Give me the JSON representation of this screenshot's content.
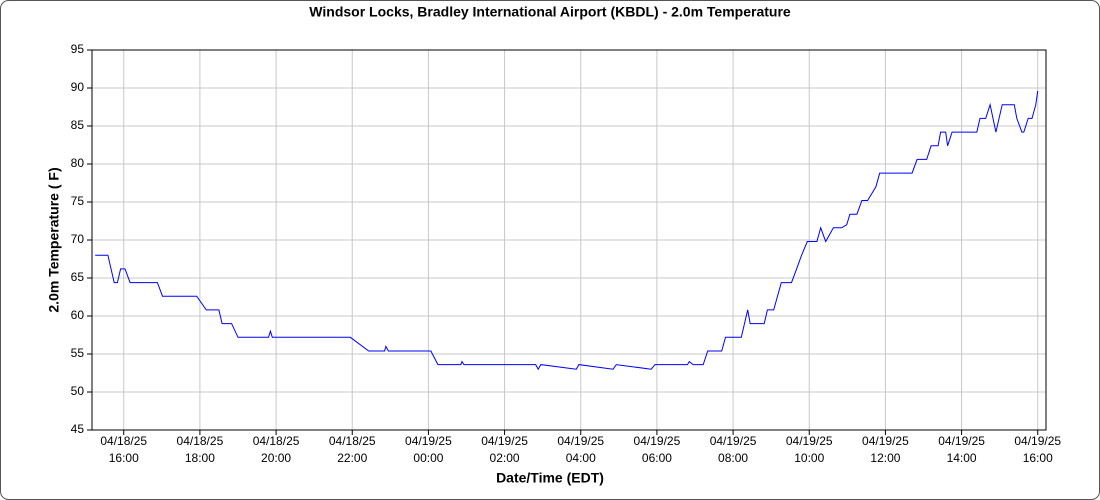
{
  "chart_data": {
    "type": "line",
    "title": "Windsor Locks, Bradley International Airport (KBDL) - 2.0m Temperature",
    "x_label": "Date/Time (EDT)",
    "y_label": "2.0m Temperature ( F)",
    "grid": true,
    "xlim": [
      "04/18/25 15:10",
      "04/19/25 16:13"
    ],
    "xticks": [
      {
        "value": "04/18/25 16:00",
        "label": [
          "04/18/25",
          "16:00"
        ]
      },
      {
        "value": "04/18/25 18:00",
        "label": [
          "04/18/25",
          "18:00"
        ]
      },
      {
        "value": "04/18/25 20:00",
        "label": [
          "04/18/25",
          "20:00"
        ]
      },
      {
        "value": "04/18/25 22:00",
        "label": [
          "04/18/25",
          "22:00"
        ]
      },
      {
        "value": "04/19/25 00:00",
        "label": [
          "04/19/25",
          "00:00"
        ]
      },
      {
        "value": "04/19/25 02:00",
        "label": [
          "04/19/25",
          "02:00"
        ]
      },
      {
        "value": "04/19/25 04:00",
        "label": [
          "04/19/25",
          "04:00"
        ]
      },
      {
        "value": "04/19/25 06:00",
        "label": [
          "04/19/25",
          "06:00"
        ]
      },
      {
        "value": "04/19/25 08:00",
        "label": [
          "04/19/25",
          "08:00"
        ]
      },
      {
        "value": "04/19/25 10:00",
        "label": [
          "04/19/25",
          "10:00"
        ]
      },
      {
        "value": "04/19/25 12:00",
        "label": [
          "04/19/25",
          "12:00"
        ]
      },
      {
        "value": "04/19/25 14:00",
        "label": [
          "04/19/25",
          "14:00"
        ]
      },
      {
        "value": "04/19/25 16:00",
        "label": [
          "04/19/25",
          "16:00"
        ]
      }
    ],
    "ylim": [
      45,
      95
    ],
    "yticks": [
      45,
      50,
      55,
      60,
      65,
      70,
      75,
      80,
      85,
      90,
      95
    ],
    "x": [
      "04/18/25 15:15",
      "04/18/25 15:35",
      "04/18/25 15:45",
      "04/18/25 15:50",
      "04/18/25 15:55",
      "04/18/25 16:02",
      "04/18/25 16:10",
      "04/18/25 16:53",
      "04/18/25 17:01",
      "04/18/25 17:48",
      "04/18/25 17:55",
      "04/18/25 18:10",
      "04/18/25 18:30",
      "04/18/25 18:35",
      "04/18/25 18:50",
      "04/18/25 19:00",
      "04/18/25 19:48",
      "04/18/25 19:51",
      "04/18/25 19:54",
      "04/18/25 21:49",
      "04/18/25 21:57",
      "04/18/25 22:26",
      "04/18/25 22:51",
      "04/18/25 22:53",
      "04/18/25 22:57",
      "04/18/25 23:56",
      "04/19/25 00:04",
      "04/19/25 00:15",
      "04/19/25 00:51",
      "04/19/25 00:53",
      "04/19/25 00:56",
      "04/19/25 02:49",
      "04/19/25 02:53",
      "04/19/25 02:57",
      "04/19/25 03:53",
      "04/19/25 03:57",
      "04/19/25 04:51",
      "04/19/25 04:56",
      "04/19/25 05:51",
      "04/19/25 05:57",
      "04/19/25 06:48",
      "04/19/25 06:51",
      "04/19/25 06:57",
      "04/19/25 07:13",
      "04/19/25 07:20",
      "04/19/25 07:42",
      "04/19/25 07:48",
      "04/19/25 08:13",
      "04/19/25 08:23",
      "04/19/25 08:27",
      "04/19/25 08:49",
      "04/19/25 08:54",
      "04/19/25 09:04",
      "04/19/25 09:10",
      "04/19/25 09:16",
      "04/19/25 09:32",
      "04/19/25 09:40",
      "04/19/25 09:48",
      "04/19/25 09:57",
      "04/19/25 10:12",
      "04/19/25 10:18",
      "04/19/25 10:26",
      "04/19/25 10:38",
      "04/19/25 10:51",
      "04/19/25 10:59",
      "04/19/25 11:04",
      "04/19/25 11:15",
      "04/19/25 11:23",
      "04/19/25 11:32",
      "04/19/25 11:45",
      "04/19/25 11:51",
      "04/19/25 12:42",
      "04/19/25 12:50",
      "04/19/25 13:05",
      "04/19/25 13:12",
      "04/19/25 13:23",
      "04/19/25 13:27",
      "04/19/25 13:35",
      "04/19/25 13:38",
      "04/19/25 13:45",
      "04/19/25 14:24",
      "04/19/25 14:29",
      "04/19/25 14:38",
      "04/19/25 14:45",
      "04/19/25 14:54",
      "04/19/25 15:04",
      "04/19/25 15:23",
      "04/19/25 15:27",
      "04/19/25 15:35",
      "04/19/25 15:38",
      "04/19/25 15:45",
      "04/19/25 15:51",
      "04/19/25 15:57",
      "04/19/25 16:00"
    ],
    "series": [
      {
        "color": "#0000ff",
        "values": [
          68,
          68,
          64.4,
          64.4,
          66.2,
          66.2,
          64.4,
          64.4,
          62.6,
          62.6,
          62.6,
          60.8,
          60.8,
          59,
          59,
          57.2,
          57.2,
          58,
          57.2,
          57.2,
          57.2,
          55.4,
          55.4,
          56,
          55.4,
          55.4,
          55.4,
          53.6,
          53.6,
          54,
          53.6,
          53.6,
          53,
          53.6,
          53,
          53.6,
          53,
          53.6,
          53,
          53.6,
          53.6,
          54,
          53.6,
          53.6,
          55.4,
          55.4,
          57.2,
          57.2,
          60.8,
          59,
          59,
          60.8,
          60.8,
          62.6,
          64.4,
          64.4,
          66.2,
          68,
          69.8,
          69.8,
          71.6,
          69.8,
          71.6,
          71.6,
          72,
          73.4,
          73.4,
          75.2,
          75.2,
          77,
          78.8,
          78.8,
          80.6,
          80.6,
          82.4,
          82.4,
          84.2,
          84.2,
          82.4,
          84.2,
          84.2,
          86,
          86,
          87.8,
          84.2,
          87.8,
          87.8,
          86,
          84.2,
          84.2,
          86,
          86,
          87.8,
          89.6
        ]
      }
    ]
  }
}
